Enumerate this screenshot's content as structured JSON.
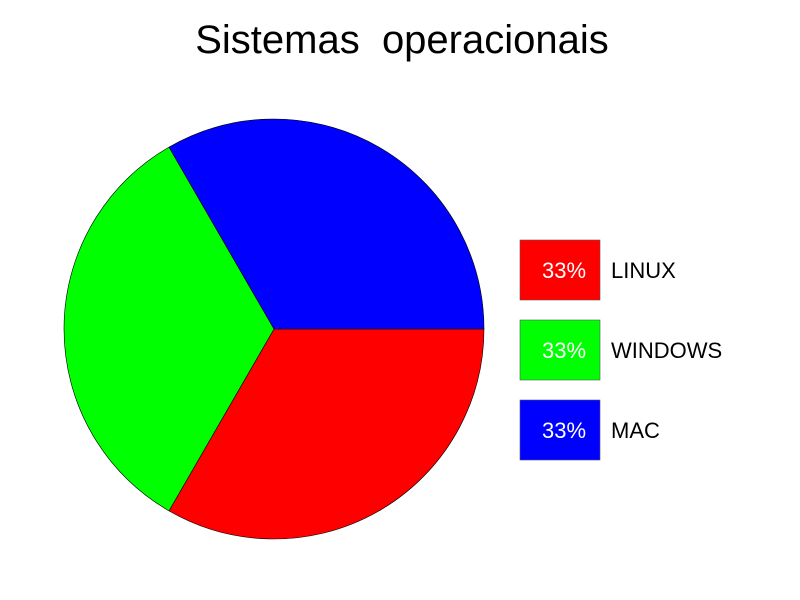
{
  "chart_data": {
    "type": "pie",
    "title": "Sistemas  operacionais",
    "slices": [
      {
        "label": "LINUX",
        "value": 33,
        "percent_label": "33%",
        "color": "#ff0000"
      },
      {
        "label": "WINDOWS",
        "value": 33,
        "percent_label": "33%",
        "color": "#00ff00"
      },
      {
        "label": "MAC",
        "value": 33,
        "percent_label": "33%",
        "color": "#0000ff"
      }
    ],
    "legend_position": "right",
    "grid": false
  }
}
